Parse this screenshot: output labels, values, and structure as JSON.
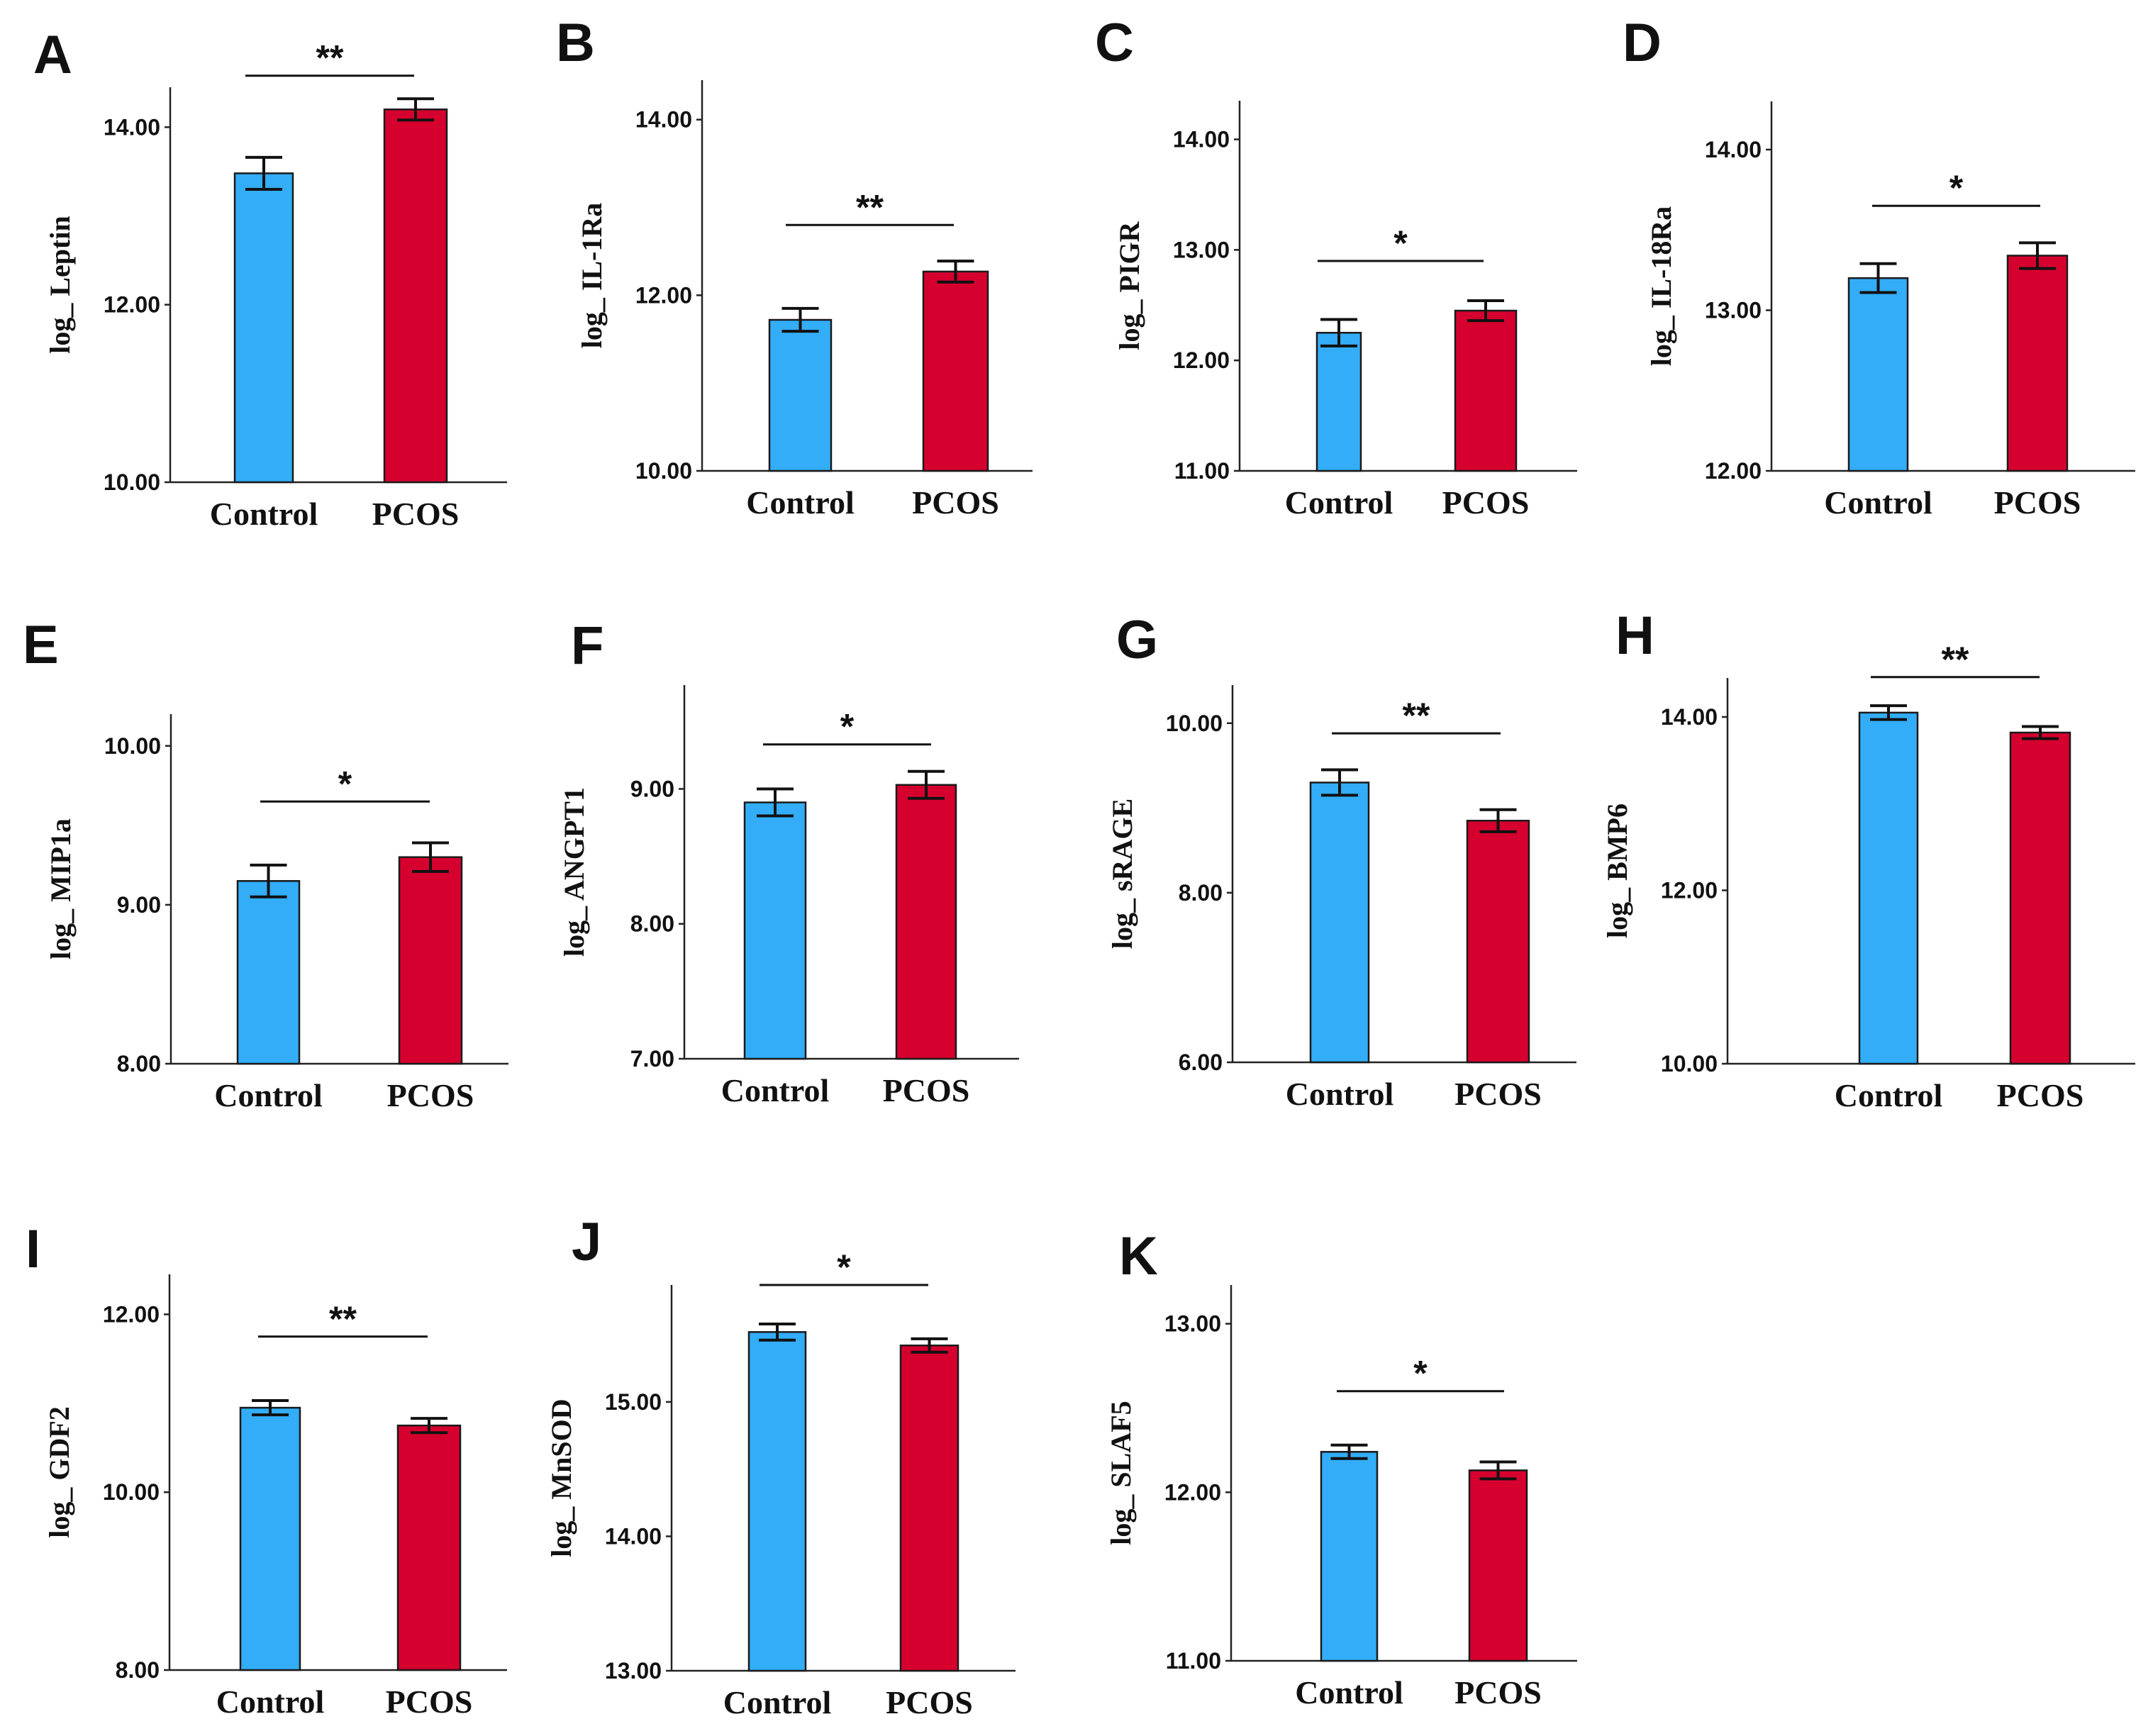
{
  "colors": {
    "control": "#33adf7",
    "pcos": "#d6002f",
    "outline": "#1a1a1a"
  },
  "chart_data": [
    {
      "type": "bar",
      "panel": "A",
      "ylabel": "log_ Leptin",
      "categories": [
        "Control",
        "PCOS"
      ],
      "values": [
        13.48,
        14.2
      ],
      "errors": [
        0.18,
        0.12
      ],
      "ylim": [
        10,
        14.45
      ],
      "yticks": [
        "10.00",
        "12.00",
        "14.00"
      ],
      "yticks_values": [
        10,
        12,
        14
      ],
      "significance": "**",
      "sig_value": 14.58
    },
    {
      "type": "bar",
      "panel": "B",
      "ylabel": "log_ IL-1Ra",
      "categories": [
        "Control",
        "PCOS"
      ],
      "values": [
        11.72,
        12.27
      ],
      "errors": [
        0.13,
        0.12
      ],
      "ylim": [
        10,
        14.45
      ],
      "yticks": [
        "10.00",
        "12.00",
        "14.00"
      ],
      "yticks_values": [
        10,
        12,
        14
      ],
      "significance": "**",
      "sig_value": 12.8
    },
    {
      "type": "bar",
      "panel": "C",
      "ylabel": "log_ PIGR",
      "categories": [
        "Control",
        "PCOS"
      ],
      "values": [
        12.25,
        12.45
      ],
      "errors": [
        0.12,
        0.09
      ],
      "ylim": [
        11,
        14.35
      ],
      "yticks": [
        "11.00",
        "12.00",
        "13.00",
        "14.00"
      ],
      "yticks_values": [
        11,
        12,
        13,
        14
      ],
      "significance": "*",
      "sig_value": 12.9
    },
    {
      "type": "bar",
      "panel": "D",
      "ylabel": "log_ IL-18Ra",
      "categories": [
        "Control",
        "PCOS"
      ],
      "values": [
        13.2,
        13.34
      ],
      "errors": [
        0.09,
        0.08
      ],
      "ylim": [
        12,
        14.3
      ],
      "yticks": [
        "12.00",
        "13.00",
        "14.00"
      ],
      "yticks_values": [
        12,
        13,
        14
      ],
      "significance": "*",
      "sig_value": 13.65
    },
    {
      "type": "bar",
      "panel": "E",
      "ylabel": "log_ MIP1a",
      "categories": [
        "Control",
        "PCOS"
      ],
      "values": [
        9.15,
        9.3
      ],
      "errors": [
        0.1,
        0.09
      ],
      "ylim": [
        8,
        10.2
      ],
      "yticks": [
        "8.00",
        "9.00",
        "10.00"
      ],
      "yticks_values": [
        8,
        9,
        10
      ],
      "significance": "*",
      "sig_value": 9.65
    },
    {
      "type": "bar",
      "panel": "F",
      "ylabel": "log_ ANGPT1",
      "categories": [
        "Control",
        "PCOS"
      ],
      "values": [
        8.9,
        9.03
      ],
      "errors": [
        0.1,
        0.1
      ],
      "ylim": [
        7,
        9.77
      ],
      "yticks": [
        "7.00",
        "8.00",
        "9.00"
      ],
      "yticks_values": [
        7,
        8,
        9
      ],
      "significance": "*",
      "sig_value": 9.33
    },
    {
      "type": "bar",
      "panel": "G",
      "ylabel": "log_ sRAGE",
      "categories": [
        "Control",
        "PCOS"
      ],
      "values": [
        9.3,
        8.85
      ],
      "errors": [
        0.15,
        0.13
      ],
      "ylim": [
        6,
        10.45
      ],
      "yticks": [
        "6.00",
        "8.00",
        "10.00"
      ],
      "yticks_values": [
        6,
        8,
        10
      ],
      "significance": "**",
      "sig_value": 9.88
    },
    {
      "type": "bar",
      "panel": "H",
      "ylabel": "log_ BMP6",
      "categories": [
        "Control",
        "PCOS"
      ],
      "values": [
        14.05,
        13.82
      ],
      "errors": [
        0.08,
        0.07
      ],
      "ylim": [
        10,
        14.45
      ],
      "yticks": [
        "10.00",
        "12.00",
        "14.00"
      ],
      "yticks_values": [
        10,
        12,
        14
      ],
      "significance": "**",
      "sig_value": 14.46
    },
    {
      "type": "bar",
      "panel": "I",
      "ylabel": "log_ GDF2",
      "categories": [
        "Control",
        "PCOS"
      ],
      "values": [
        10.95,
        10.75
      ],
      "errors": [
        0.08,
        0.08
      ],
      "ylim": [
        8,
        12.45
      ],
      "yticks": [
        "8.00",
        "10.00",
        "12.00"
      ],
      "yticks_values": [
        8,
        10,
        12
      ],
      "significance": "**",
      "sig_value": 11.75
    },
    {
      "type": "bar",
      "panel": "J",
      "ylabel": "log_ MnSOD",
      "categories": [
        "Control",
        "PCOS"
      ],
      "values": [
        15.52,
        15.42
      ],
      "errors": [
        0.06,
        0.05
      ],
      "ylim": [
        13,
        15.87
      ],
      "yticks": [
        "13.00",
        "14.00",
        "15.00"
      ],
      "yticks_values": [
        13,
        14,
        15
      ],
      "significance": "*",
      "sig_value": 15.87
    },
    {
      "type": "bar",
      "panel": "K",
      "ylabel": "log_ SLAF5",
      "categories": [
        "Control",
        "PCOS"
      ],
      "values": [
        12.24,
        12.13
      ],
      "errors": [
        0.04,
        0.05
      ],
      "ylim": [
        11,
        13.23
      ],
      "yticks": [
        "11.00",
        "12.00",
        "13.00"
      ],
      "yticks_values": [
        11,
        12,
        13
      ],
      "significance": "*",
      "sig_value": 12.6
    }
  ]
}
